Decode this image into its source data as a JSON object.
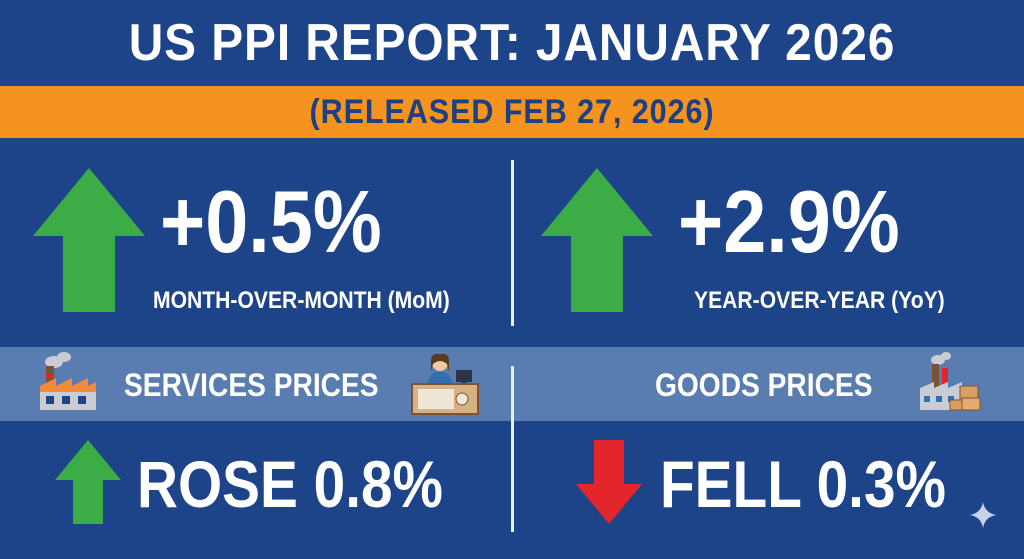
{
  "header": {
    "title": "US PPI REPORT: JANUARY 2026",
    "subtitle": "(RELEASED FEB 27, 2026)"
  },
  "metrics": [
    {
      "value": "+0.5%",
      "label": "MONTH-OVER-MONTH (MoM)",
      "direction": "up",
      "arrow_color": "#3cac47"
    },
    {
      "value": "+2.9%",
      "label": "YEAR-OVER-YEAR (YoY)",
      "direction": "up",
      "arrow_color": "#3cac47"
    }
  ],
  "categories": [
    {
      "label": "SERVICES PRICES",
      "result": "ROSE 0.8%",
      "direction": "up",
      "arrow_color": "#3cac47",
      "icons": [
        "factory-icon",
        "office-worker-icon"
      ]
    },
    {
      "label": "GOODS PRICES",
      "result": "FELL 0.3%",
      "direction": "down",
      "arrow_color": "#e3262b",
      "icons": [
        "factory-boxes-icon"
      ]
    }
  ],
  "colors": {
    "background": "#1d4489",
    "accent_band": "#f4941f",
    "mid_band": "#5a7db1",
    "subtitle_text": "#1d3f84",
    "up": "#3cac47",
    "down": "#e3262b"
  }
}
